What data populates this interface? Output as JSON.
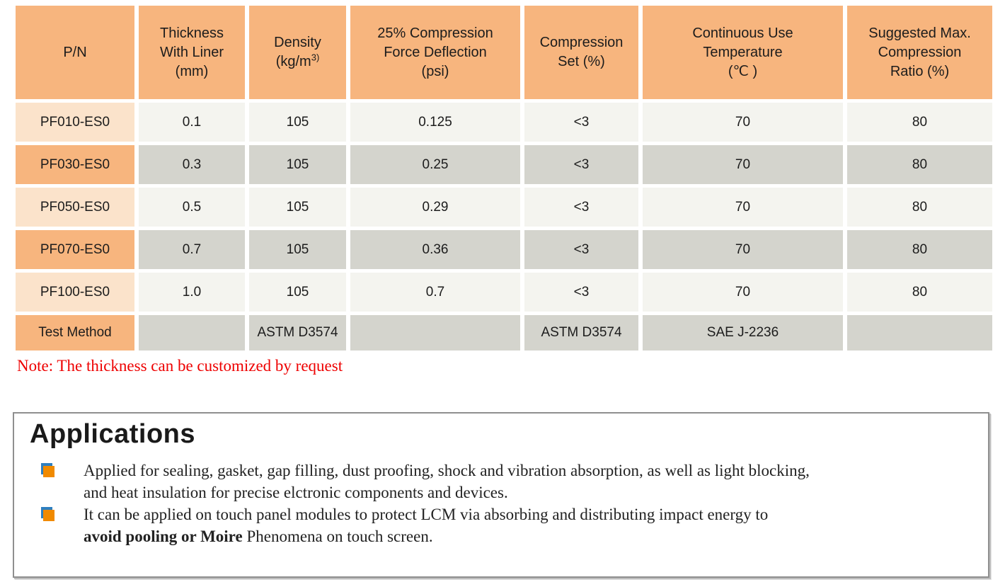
{
  "colors": {
    "header-bg": "#F7B57E",
    "pn-light-bg": "#FBE3CB",
    "cell-light-bg": "#F4F4EF",
    "cell-dark-bg": "#D4D4CD",
    "note-red": "#EE0000",
    "bullet-orange": "#F08A00",
    "bullet-blue": "#2E7FC0",
    "box-border": "#8f8f8f"
  },
  "spec_table": {
    "headers": [
      {
        "lines": [
          "P/N"
        ]
      },
      {
        "lines": [
          "Thickness",
          "With Liner",
          "(mm)"
        ]
      },
      {
        "lines": [
          "Density",
          {
            "pre": "(kg/m",
            "sup": "3)"
          }
        ]
      },
      {
        "lines": [
          "25% Compression",
          "Force Deflection",
          "(psi)"
        ]
      },
      {
        "lines": [
          "Compression",
          "Set (%)"
        ]
      },
      {
        "lines": [
          "Continuous Use",
          "Temperature",
          "(℃ )"
        ]
      },
      {
        "lines": [
          "Suggested Max.",
          "Compression",
          "Ratio (%)"
        ]
      }
    ],
    "rows": [
      {
        "variant": "light",
        "cells": [
          "PF010-ES0",
          "0.1",
          "105",
          "0.125",
          "<3",
          "70",
          "80"
        ]
      },
      {
        "variant": "dark",
        "cells": [
          "PF030-ES0",
          "0.3",
          "105",
          "0.25",
          "<3",
          "70",
          "80"
        ]
      },
      {
        "variant": "light",
        "cells": [
          "PF050-ES0",
          "0.5",
          "105",
          "0.29",
          "<3",
          "70",
          "80"
        ]
      },
      {
        "variant": "dark",
        "cells": [
          "PF070-ES0",
          "0.7",
          "105",
          "0.36",
          "<3",
          "70",
          "80"
        ]
      },
      {
        "variant": "light",
        "cells": [
          "PF100-ES0",
          "1.0",
          "105",
          "0.7",
          "<3",
          "70",
          "80"
        ]
      },
      {
        "variant": "test",
        "cells": [
          "Test Method",
          "",
          "ASTM D3574",
          "",
          "ASTM D3574",
          "SAE J-2236",
          ""
        ]
      }
    ]
  },
  "note": {
    "text": "Note: The thickness can be customized by request"
  },
  "applications": {
    "title": "Applications",
    "items": [
      {
        "lines": [
          [
            {
              "t": "Applied for sealing, gasket, gap filling, dust proofing, shock and vibration absorption, as well as light blocking,"
            }
          ],
          [
            {
              "t": "and heat insulation for precise elctronic components and devices."
            }
          ]
        ]
      },
      {
        "lines": [
          [
            {
              "t": "It can be applied on touch panel modules to protect LCM via absorbing and distributing impact energy to"
            }
          ],
          [
            {
              "t": "avoid pooling or Moire",
              "b": true
            },
            {
              "t": " Phenomena on touch screen."
            }
          ]
        ]
      }
    ]
  }
}
